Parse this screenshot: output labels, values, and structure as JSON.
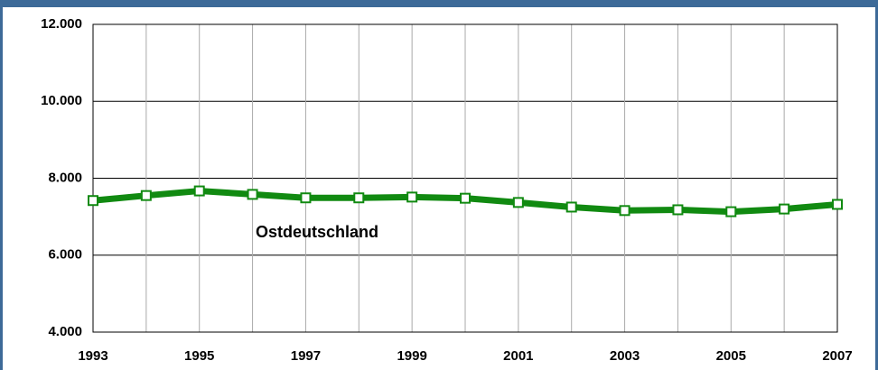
{
  "chart_data": {
    "type": "line",
    "categories": [
      "1993",
      null,
      "1995",
      null,
      "1997",
      null,
      "1999",
      null,
      "2001",
      null,
      "2003",
      null,
      "2005",
      null,
      "2007"
    ],
    "series": [
      {
        "name": "Ostdeutschland",
        "color": "#118a11",
        "values": [
          7420,
          7550,
          7670,
          7580,
          7490,
          7490,
          7510,
          7480,
          7370,
          7250,
          7160,
          7180,
          7130,
          7200,
          7320
        ]
      }
    ],
    "ylim": [
      4000,
      12000
    ],
    "yticks": [
      {
        "value": 4000,
        "label": "4.000"
      },
      {
        "value": 6000,
        "label": "6.000"
      },
      {
        "value": 8000,
        "label": "8.000"
      },
      {
        "value": 10000,
        "label": "10.000"
      },
      {
        "value": 12000,
        "label": "12.000"
      }
    ],
    "grid": true
  }
}
